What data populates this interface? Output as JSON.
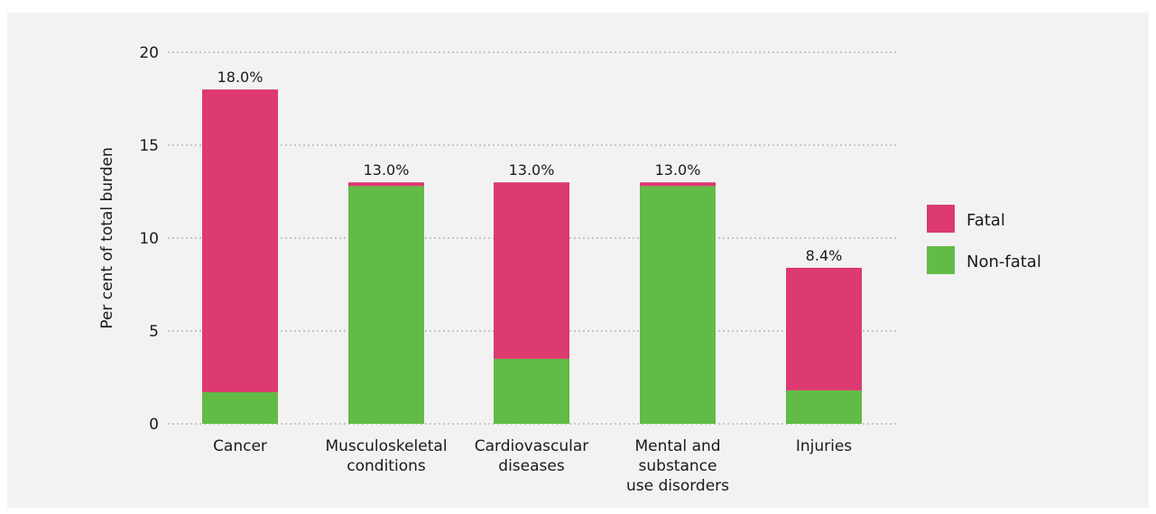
{
  "chart_data": {
    "type": "bar",
    "stacked": true,
    "title": "",
    "xlabel": "",
    "ylabel": "Per cent of total burden",
    "ylim": [
      0,
      20
    ],
    "yticks": [
      0,
      5,
      10,
      15,
      20
    ],
    "grid": true,
    "legend_position": "right",
    "categories": [
      [
        "Cancer"
      ],
      [
        "Musculoskeletal",
        "conditions"
      ],
      [
        "Cardiovascular",
        "diseases"
      ],
      [
        "Mental and",
        "substance",
        "use disorders"
      ],
      [
        "Injuries"
      ]
    ],
    "series": [
      {
        "name": "Non-fatal",
        "color": "#62bb46",
        "values": [
          1.7,
          12.8,
          3.5,
          12.8,
          1.8
        ]
      },
      {
        "name": "Fatal",
        "color": "#dc3a70",
        "values": [
          16.3,
          0.2,
          9.5,
          0.2,
          6.6
        ]
      }
    ],
    "totals_labels": [
      "18.0%",
      "13.0%",
      "13.0%",
      "13.0%",
      "8.4%"
    ],
    "totals": [
      18.0,
      13.0,
      13.0,
      13.0,
      8.4
    ],
    "legend": [
      {
        "name": "Fatal",
        "color": "#dc3a70"
      },
      {
        "name": "Non-fatal",
        "color": "#62bb46"
      }
    ]
  }
}
